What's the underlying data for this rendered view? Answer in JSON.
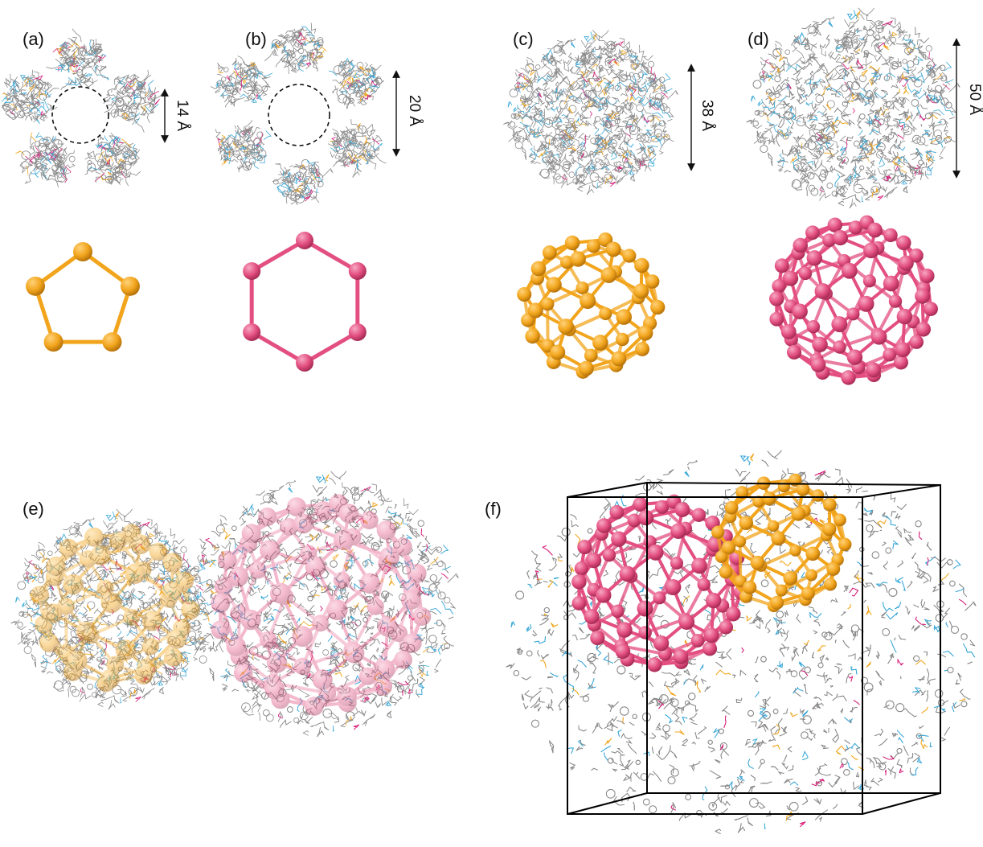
{
  "panels": {
    "a": {
      "label": "(a)",
      "dimension": "14 Å",
      "polyhedron": "pentagon",
      "color": "#f2a51c"
    },
    "b": {
      "label": "(b)",
      "dimension": "20 Å",
      "polyhedron": "hexagon",
      "color": "#e34f80"
    },
    "c": {
      "label": "(c)",
      "dimension": "38 Å",
      "polyhedron": "cage-sphere",
      "color": "#f2a51c"
    },
    "d": {
      "label": "(d)",
      "dimension": "50 Å",
      "polyhedron": "cage-sphere",
      "color": "#e34f80"
    },
    "e": {
      "label": "(e)"
    },
    "f": {
      "label": "(f)"
    }
  },
  "colors": {
    "orange": "#f2a51c",
    "pink": "#e34f80",
    "wire": "#8a8a8a",
    "blue": "#3ba8d8",
    "magenta": "#d6207a",
    "frame": "#000000"
  }
}
